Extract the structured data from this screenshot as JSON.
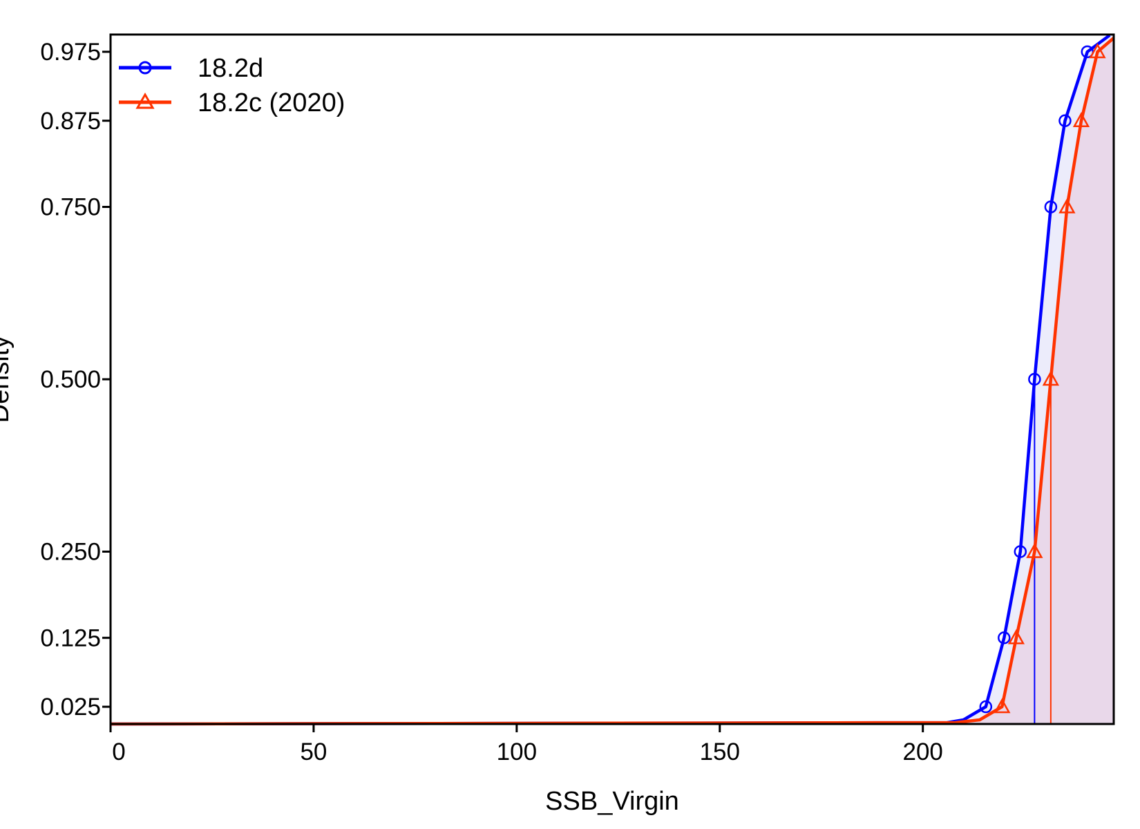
{
  "chart_data": {
    "type": "line",
    "title": "",
    "xlabel": "SSB_Virgin",
    "ylabel": "Density",
    "xlim": [
      0,
      247
    ],
    "ylim": [
      0,
      1
    ],
    "x_ticks": [
      0,
      50,
      100,
      150,
      200
    ],
    "x_tick_labels": [
      "0",
      "50",
      "100",
      "150",
      "200"
    ],
    "y_ticks": [
      0.025,
      0.125,
      0.25,
      0.5,
      0.75,
      0.875,
      0.975
    ],
    "y_tick_labels": [
      "0.025",
      "0.125",
      "0.250",
      "0.500",
      "0.750",
      "0.875",
      "0.975"
    ],
    "grid": false,
    "legend_position": "top-left",
    "series": [
      {
        "name": "18.2d",
        "color": "#0000ff",
        "fill": "#e6e6fa",
        "marker": "circle",
        "median": 227.5,
        "x": [
          206,
          210,
          215.5,
          220,
          224,
          227.5,
          231.5,
          235,
          240.5,
          246
        ],
        "y": [
          0.002,
          0.006,
          0.025,
          0.125,
          0.25,
          0.5,
          0.75,
          0.875,
          0.975,
          0.999
        ]
      },
      {
        "name": "18.2c (2020)",
        "color": "#ff3300",
        "fill": "#e8d0e3",
        "marker": "triangle",
        "median": 231.5,
        "x": [
          208,
          214,
          219.5,
          223,
          227.5,
          231.5,
          235.5,
          239,
          243,
          247
        ],
        "y": [
          0.002,
          0.006,
          0.025,
          0.125,
          0.25,
          0.5,
          0.75,
          0.875,
          0.975,
          0.995
        ]
      }
    ]
  }
}
